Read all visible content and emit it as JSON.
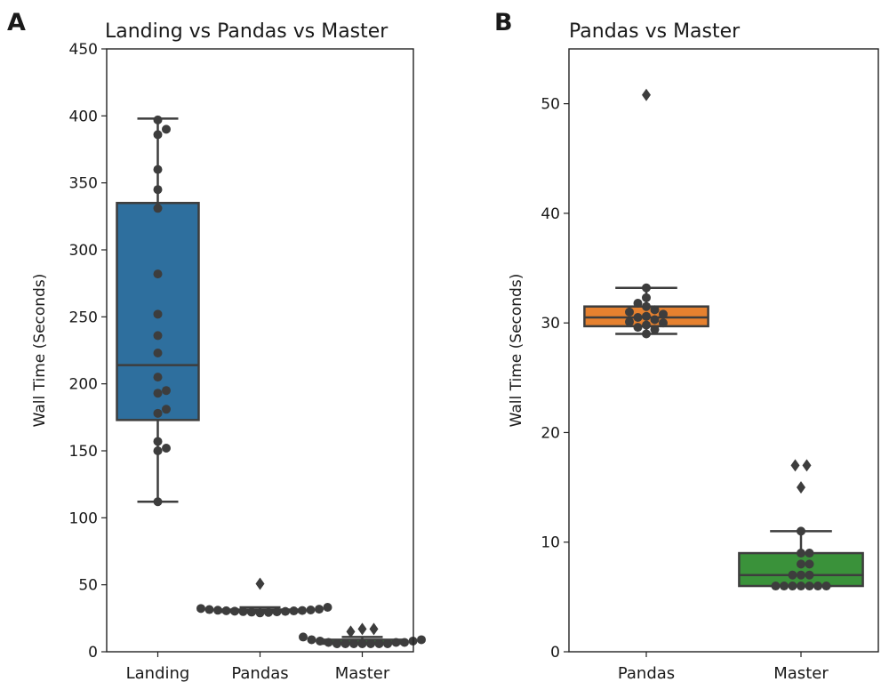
{
  "chart_data": [
    {
      "panel_label": "A",
      "type": "boxplot+swarm",
      "title": "Landing vs Pandas vs Master",
      "xlabel": "",
      "ylabel": "Wall Time (Seconds)",
      "ylim": [
        0,
        450
      ],
      "yticks": [
        0,
        50,
        100,
        150,
        200,
        250,
        300,
        350,
        400,
        450
      ],
      "categories": [
        "Landing",
        "Pandas",
        "Master"
      ],
      "colors": [
        "#2e6f9e",
        "#e6812f",
        "#3a923a"
      ],
      "boxes": [
        {
          "name": "Landing",
          "q1": 173,
          "median": 214,
          "q3": 335,
          "whisker_low": 112,
          "whisker_high": 398,
          "fliers": [],
          "points": [
            112,
            150,
            152,
            157,
            178,
            181,
            193,
            195,
            205,
            223,
            236,
            252,
            282,
            331,
            345,
            360,
            386,
            390,
            397
          ]
        },
        {
          "name": "Pandas",
          "q1": 29.7,
          "median": 30.5,
          "q3": 31.5,
          "whisker_low": 29,
          "whisker_high": 33.2,
          "fliers": [
            50.8
          ],
          "points": [
            29,
            29.4,
            29.6,
            29.8,
            30,
            30.1,
            30.3,
            30.5,
            30.6,
            30.8,
            31,
            31.2,
            31.5,
            31.8,
            32.3,
            33.2
          ]
        },
        {
          "name": "Master",
          "q1": 6,
          "median": 7,
          "q3": 9,
          "whisker_low": 6,
          "whisker_high": 11,
          "fliers": [
            15,
            17,
            17
          ],
          "points": [
            6,
            6,
            6,
            6,
            6,
            6,
            6,
            7,
            7,
            7,
            8,
            8,
            9,
            9,
            11
          ]
        }
      ]
    },
    {
      "panel_label": "B",
      "type": "boxplot+swarm",
      "title": "Pandas vs Master",
      "xlabel": "",
      "ylabel": "Wall Time (Seconds)",
      "ylim": [
        0,
        55
      ],
      "yticks": [
        0,
        10,
        20,
        30,
        40,
        50
      ],
      "categories": [
        "Pandas",
        "Master"
      ],
      "colors": [
        "#e6812f",
        "#3a923a"
      ],
      "boxes": [
        {
          "name": "Pandas",
          "q1": 29.7,
          "median": 30.5,
          "q3": 31.5,
          "whisker_low": 29,
          "whisker_high": 33.2,
          "fliers": [
            50.8
          ],
          "points": [
            29,
            29.4,
            29.6,
            29.8,
            30,
            30.1,
            30.3,
            30.5,
            30.6,
            30.8,
            31,
            31.2,
            31.5,
            31.8,
            32.3,
            33.2
          ]
        },
        {
          "name": "Master",
          "q1": 6,
          "median": 7,
          "q3": 9,
          "whisker_low": 6,
          "whisker_high": 11,
          "fliers": [
            15,
            17,
            17
          ],
          "points": [
            6,
            6,
            6,
            6,
            6,
            6,
            6,
            7,
            7,
            7,
            8,
            8,
            9,
            9,
            11
          ]
        }
      ]
    }
  ]
}
